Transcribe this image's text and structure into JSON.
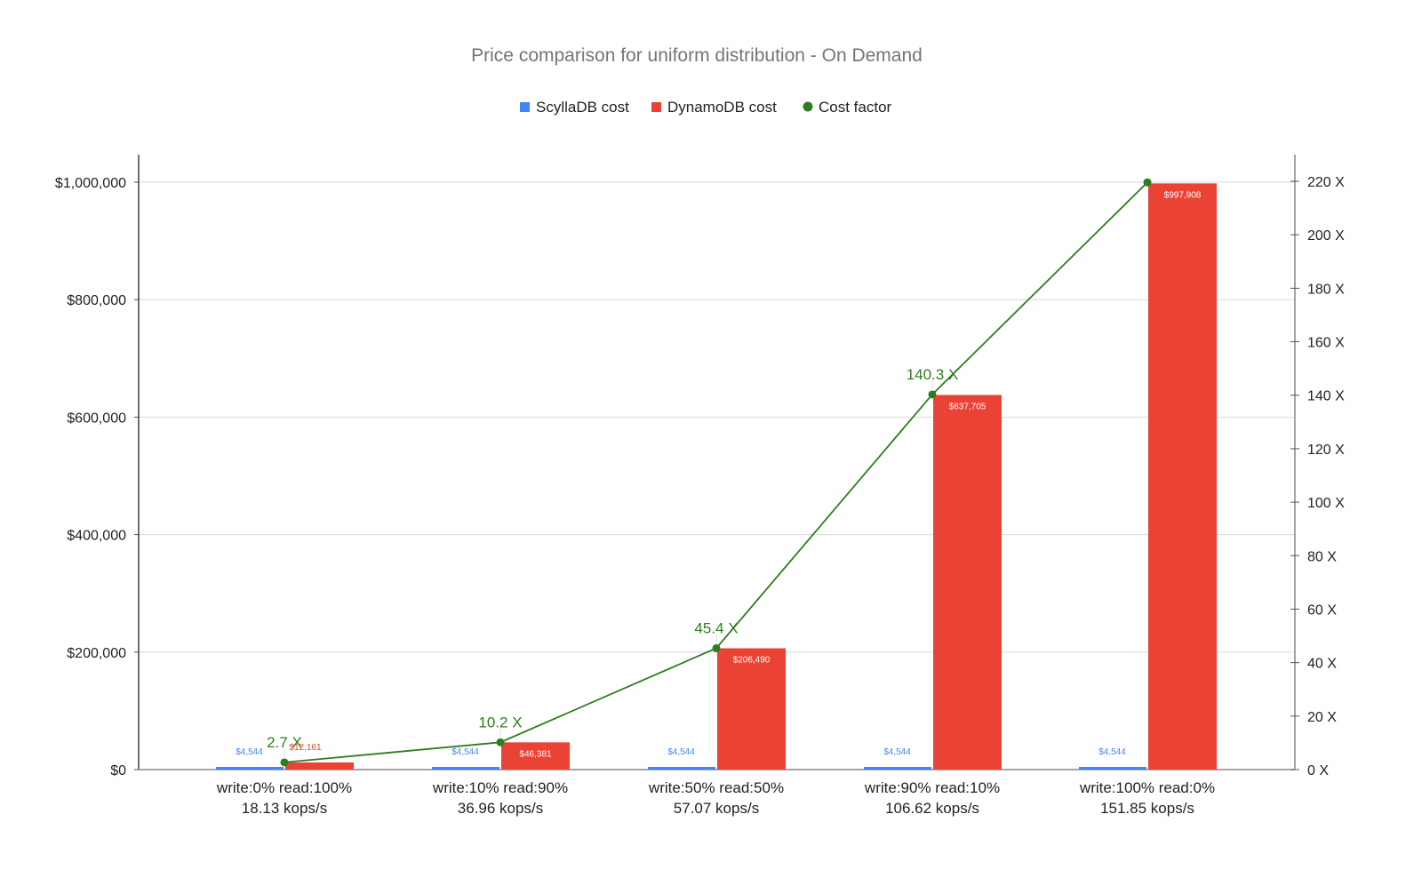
{
  "chart_data": {
    "type": "bar",
    "title": "Price comparison for uniform distribution - On Demand",
    "categories": [
      "write:0% read:100%\n18.13 kops/s",
      "write:10% read:90%\n36.96 kops/s",
      "write:50% read:50%\n57.07 kops/s",
      "write:90% read:10%\n106.62 kops/s",
      "write:100% read:0%\n151.85 kops/s"
    ],
    "category_lines": [
      [
        "write:0% read:100%",
        "18.13 kops/s"
      ],
      [
        "write:10% read:90%",
        "36.96 kops/s"
      ],
      [
        "write:50% read:50%",
        "57.07 kops/s"
      ],
      [
        "write:90% read:10%",
        "106.62 kops/s"
      ],
      [
        "write:100% read:0%",
        "151.85 kops/s"
      ]
    ],
    "series": [
      {
        "name": "ScyllaDB cost",
        "type": "bar",
        "axis": "left",
        "color": "#4285f4",
        "values": [
          4544,
          4544,
          4544,
          4544,
          4544
        ],
        "labels": [
          "$4,544",
          "$4,544",
          "$4,544",
          "$4,544",
          "$4,544"
        ]
      },
      {
        "name": "DynamoDB cost",
        "type": "bar",
        "axis": "left",
        "color": "#ea4335",
        "values": [
          12161,
          46381,
          206490,
          637705,
          997908
        ],
        "labels": [
          "$12,161",
          "$46,381",
          "$206,490",
          "$637,705",
          "$997,908"
        ]
      },
      {
        "name": "Cost factor",
        "type": "line",
        "axis": "right",
        "color": "#2e7d1e",
        "values": [
          2.7,
          10.2,
          45.4,
          140.3,
          219.6
        ],
        "labels": [
          "2.7 X",
          "10.2 X",
          "45.4 X",
          "140.3 X",
          ""
        ]
      }
    ],
    "xlabel": "",
    "ylabel": "",
    "ylim": [
      0,
      1050000
    ],
    "y2lim": [
      0,
      230
    ],
    "y_ticks": [
      "$0",
      "$200,000",
      "$400,000",
      "$600,000",
      "$800,000",
      "$1,000,000"
    ],
    "y_tick_values": [
      0,
      200000,
      400000,
      600000,
      800000,
      1000000
    ],
    "y2_ticks": [
      "0 X",
      "20 X",
      "40 X",
      "60 X",
      "80 X",
      "100 X",
      "120 X",
      "140 X",
      "160 X",
      "180 X",
      "200 X",
      "220 X"
    ],
    "y2_tick_values": [
      0,
      20,
      40,
      60,
      80,
      100,
      120,
      140,
      160,
      180,
      200,
      220
    ],
    "grid": true,
    "legend_position": "top"
  },
  "legend": {
    "items": [
      {
        "label": "ScyllaDB cost",
        "color": "#4285f4",
        "shape": "square"
      },
      {
        "label": "DynamoDB cost",
        "color": "#ea4335",
        "shape": "square"
      },
      {
        "label": "Cost factor",
        "color": "#2e7d1e",
        "shape": "circle"
      }
    ]
  }
}
